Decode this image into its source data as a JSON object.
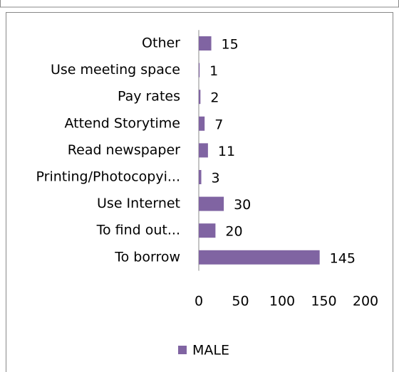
{
  "chart_data": {
    "type": "bar",
    "orientation": "horizontal",
    "categories": [
      "Other",
      "Use meeting space",
      "Pay rates",
      "Attend Storytime",
      "Read newspaper",
      "Printing/Photocopyi...",
      "Use Internet",
      "To find out...",
      "To borrow"
    ],
    "series": [
      {
        "name": "MALE",
        "color": "#8064a2",
        "values": [
          15,
          1,
          2,
          7,
          11,
          3,
          30,
          20,
          145
        ]
      }
    ],
    "xlim": [
      0,
      200
    ],
    "xticks": [
      0,
      50,
      100,
      150,
      200
    ],
    "legend": "bottom"
  }
}
